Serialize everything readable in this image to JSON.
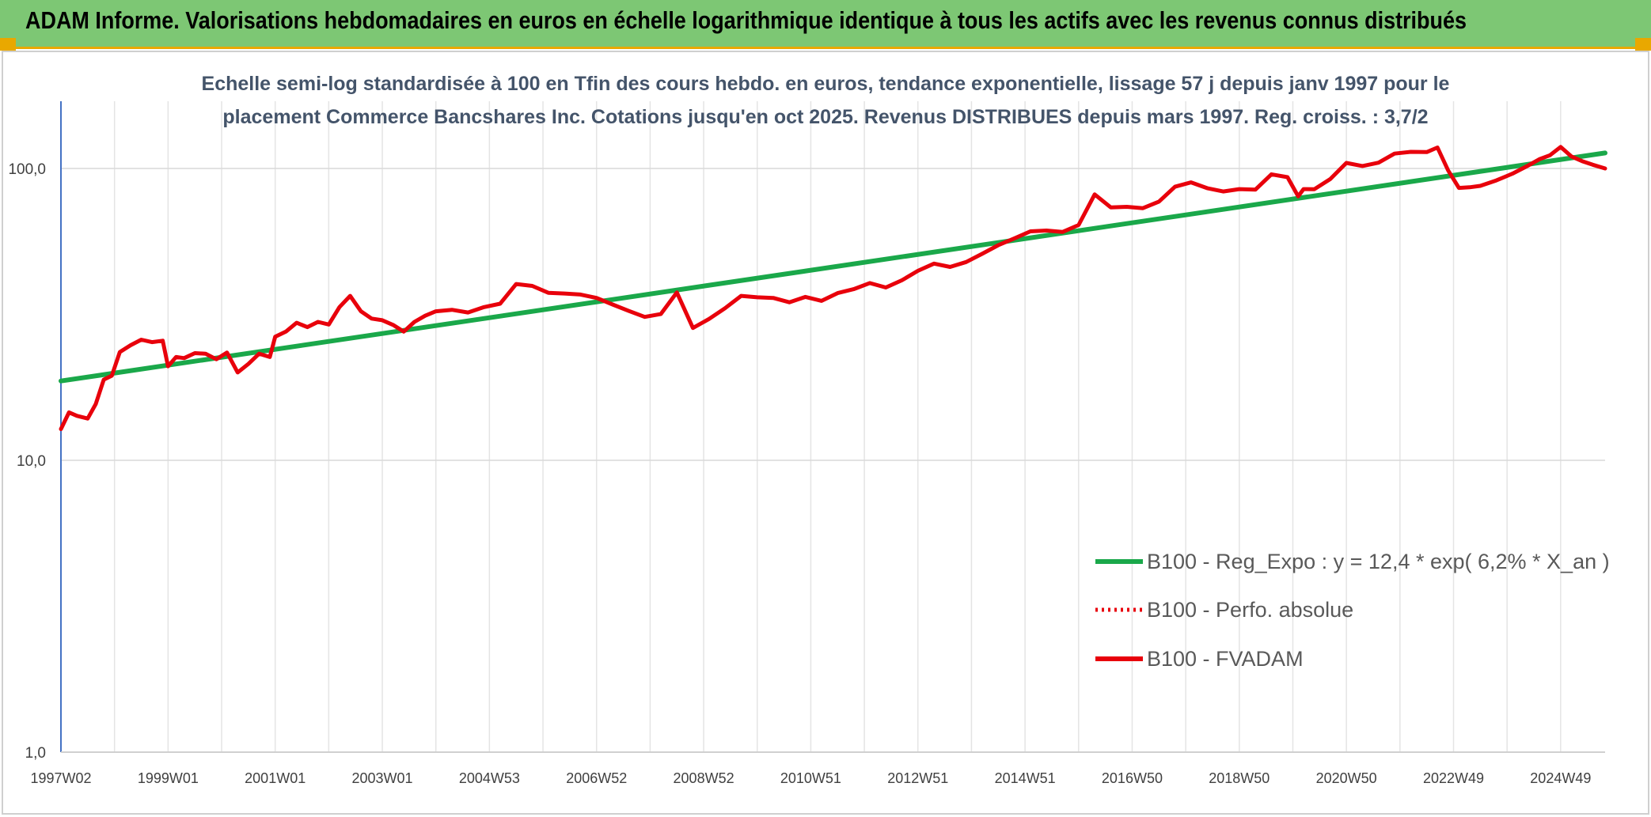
{
  "banner": {
    "title": "ADAM Informe. Valorisations hebdomadaires en euros en échelle logarithmique identique à tous les actifs avec les revenus connus distribués"
  },
  "colors": {
    "banner_bg": "#7dc774",
    "accent": "#e9a800",
    "trend": "#1aa84a",
    "fvadam": "#e8000b",
    "perfo": "#e8000b"
  },
  "chart_data": {
    "type": "line",
    "title_lines": [
      "Echelle semi-log standardisée à 100 en Tfin des cours hebdo. en euros, tendance exponentielle, lissage 57 j depuis janv 1997 pour le",
      "placement Commerce Bancshares Inc. Cotations jusqu'en oct 2025. Revenus DISTRIBUES depuis mars 1997. Reg. croiss. : 3,7/2"
    ],
    "y_scale": "log",
    "ylim": [
      1,
      170
    ],
    "y_ticks": [
      {
        "value": 1,
        "label": "1,0"
      },
      {
        "value": 10,
        "label": "10,0"
      },
      {
        "value": 100,
        "label": "100,0"
      }
    ],
    "xlim": [
      1997.0,
      2025.83
    ],
    "x_ticks": [
      {
        "value": 1997.0,
        "label": "1997W02"
      },
      {
        "value": 1999.0,
        "label": "1999W01"
      },
      {
        "value": 2001.0,
        "label": "2001W01"
      },
      {
        "value": 2003.0,
        "label": "2003W01"
      },
      {
        "value": 2005.0,
        "label": "2004W53"
      },
      {
        "value": 2007.0,
        "label": "2006W52"
      },
      {
        "value": 2009.0,
        "label": "2008W52"
      },
      {
        "value": 2011.0,
        "label": "2010W51"
      },
      {
        "value": 2013.0,
        "label": "2012W51"
      },
      {
        "value": 2015.0,
        "label": "2014W51"
      },
      {
        "value": 2017.0,
        "label": "2016W50"
      },
      {
        "value": 2019.0,
        "label": "2018W50"
      },
      {
        "value": 2021.0,
        "label": "2020W50"
      },
      {
        "value": 2023.0,
        "label": "2022W49"
      },
      {
        "value": 2025.0,
        "label": "2024W49"
      }
    ],
    "grid": "vertical",
    "legend_position": "bottom-right",
    "series": [
      {
        "name": "B100 - Reg_Expo : y = 12,4 * exp( 6,2% *  X_an )",
        "style": "solid",
        "x": [
          1997.0,
          2025.83
        ],
        "y": [
          18.7,
          113.0
        ]
      },
      {
        "name": "B100 - Perfo. absolue",
        "style": "dotted",
        "x": [],
        "y": []
      },
      {
        "name": "B100 - FVADAM",
        "style": "solid",
        "x": [
          1997.0,
          1997.15,
          1997.3,
          1997.5,
          1997.65,
          1997.8,
          1997.95,
          1998.1,
          1998.3,
          1998.5,
          1998.7,
          1998.9,
          1999.0,
          1999.15,
          1999.3,
          1999.5,
          1999.7,
          1999.9,
          2000.1,
          2000.3,
          2000.5,
          2000.7,
          2000.9,
          2001.0,
          2001.2,
          2001.4,
          2001.6,
          2001.8,
          2002.0,
          2002.2,
          2002.4,
          2002.6,
          2002.8,
          2003.0,
          2003.2,
          2003.4,
          2003.6,
          2003.8,
          2004.0,
          2004.3,
          2004.6,
          2004.9,
          2005.2,
          2005.5,
          2005.8,
          2006.1,
          2006.4,
          2006.7,
          2007.0,
          2007.3,
          2007.6,
          2007.9,
          2008.2,
          2008.5,
          2008.8,
          2009.1,
          2009.4,
          2009.7,
          2010.0,
          2010.3,
          2010.6,
          2010.9,
          2011.2,
          2011.5,
          2011.8,
          2012.1,
          2012.4,
          2012.7,
          2013.0,
          2013.3,
          2013.6,
          2013.9,
          2014.2,
          2014.5,
          2014.8,
          2015.1,
          2015.4,
          2015.7,
          2016.0,
          2016.3,
          2016.6,
          2016.9,
          2017.2,
          2017.5,
          2017.8,
          2018.1,
          2018.4,
          2018.7,
          2019.0,
          2019.3,
          2019.6,
          2019.9,
          2020.1,
          2020.2,
          2020.4,
          2020.7,
          2021.0,
          2021.3,
          2021.6,
          2021.9,
          2022.2,
          2022.5,
          2022.7,
          2022.9,
          2023.1,
          2023.3,
          2023.5,
          2023.8,
          2024.1,
          2024.4,
          2024.6,
          2024.8,
          2025.0,
          2025.2,
          2025.4,
          2025.6,
          2025.83
        ],
        "y": [
          12.8,
          14.6,
          14.2,
          13.9,
          15.6,
          18.9,
          19.5,
          23.5,
          24.8,
          25.9,
          25.4,
          25.7,
          21.0,
          22.6,
          22.4,
          23.3,
          23.2,
          22.2,
          23.4,
          20.0,
          21.4,
          23.2,
          22.6,
          26.5,
          27.6,
          29.6,
          28.6,
          29.8,
          29.2,
          33.5,
          36.6,
          32.4,
          30.6,
          30.2,
          29.1,
          27.6,
          29.8,
          31.3,
          32.4,
          32.8,
          32.1,
          33.5,
          34.4,
          40.2,
          39.6,
          37.5,
          37.3,
          37.0,
          36.0,
          34.2,
          32.5,
          31.0,
          31.7,
          37.6,
          28.4,
          30.5,
          33.2,
          36.6,
          36.2,
          36.0,
          34.8,
          36.3,
          35.2,
          37.4,
          38.6,
          40.5,
          39.1,
          41.4,
          44.6,
          47.2,
          46.0,
          47.8,
          51.0,
          54.6,
          57.6,
          60.9,
          61.3,
          60.6,
          64.0,
          81.5,
          73.6,
          73.9,
          73.1,
          77.0,
          86.6,
          89.6,
          85.6,
          83.4,
          85.0,
          84.6,
          95.5,
          93.4,
          80.3,
          85.0,
          84.9,
          92.0,
          104.5,
          102.0,
          104.7,
          112.5,
          114.0,
          113.8,
          118.0,
          98.5,
          85.8,
          86.2,
          87.2,
          91.0,
          96.0,
          102.5,
          107.5,
          111.0,
          118.5,
          110.0,
          106.0,
          103.0,
          100.0
        ]
      }
    ]
  }
}
